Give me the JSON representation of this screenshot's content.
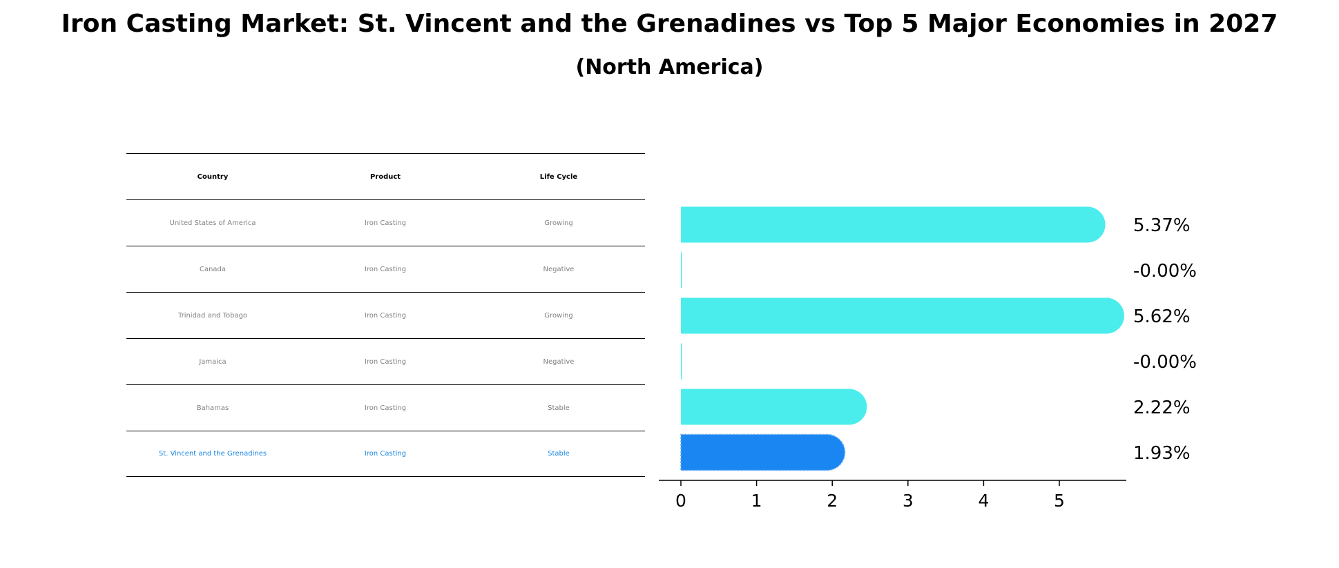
{
  "title": "Iron Casting Market: St. Vincent and the Grenadines vs Top 5 Major Economies in 2027",
  "subtitle": "(North America)",
  "table": {
    "headers": [
      "Country",
      "Product",
      "Life Cycle"
    ],
    "rows": [
      [
        "United States of America",
        "Iron Casting",
        "Growing"
      ],
      [
        "Canada",
        "Iron Casting",
        "Negative"
      ],
      [
        "Trinidad and Tobago",
        "Iron Casting",
        "Growing"
      ],
      [
        "Jamaica",
        "Iron Casting",
        "Negative"
      ],
      [
        "Bahamas",
        "Iron Casting",
        "Stable"
      ],
      [
        "St. Vincent and the Grenadines",
        "Iron Casting",
        "Stable"
      ]
    ],
    "highlight_row": 5
  },
  "colors": {
    "bar": "#4aedec",
    "highlight": "#1a86f2",
    "highlight_text": "#1a86e0"
  },
  "chart_data": {
    "type": "bar",
    "orientation": "horizontal",
    "categories": [
      "United States of America",
      "Canada",
      "Trinidad and Tobago",
      "Jamaica",
      "Bahamas",
      "St. Vincent and the Grenadines"
    ],
    "values": [
      5.37,
      -0.0,
      5.62,
      -0.0,
      2.22,
      1.93
    ],
    "value_labels": [
      "5.37%",
      "-0.00%",
      "5.62%",
      "-0.00%",
      "2.22%",
      "1.93%"
    ],
    "xlim": [
      -0.3,
      5.9
    ],
    "xticks": [
      0,
      1,
      2,
      3,
      4,
      5
    ],
    "highlight_index": 5,
    "grid": false
  }
}
